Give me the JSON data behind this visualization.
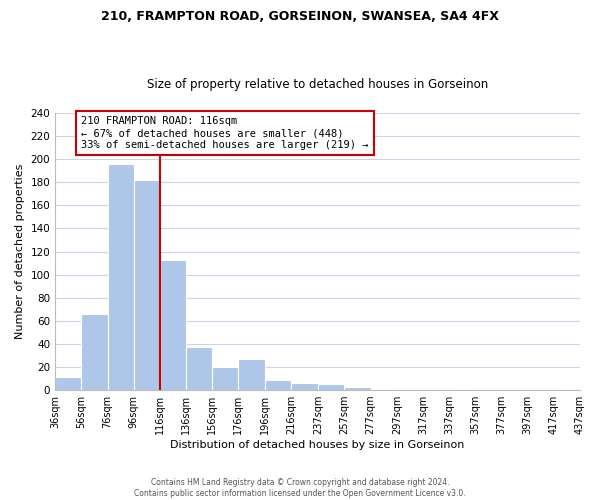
{
  "title_line1": "210, FRAMPTON ROAD, GORSEINON, SWANSEA, SA4 4FX",
  "title_line2": "Size of property relative to detached houses in Gorseinon",
  "xlabel": "Distribution of detached houses by size in Gorseinon",
  "ylabel": "Number of detached properties",
  "bin_edges": [
    36,
    56,
    76,
    96,
    116,
    136,
    156,
    176,
    196,
    216,
    237,
    257,
    277,
    297,
    317,
    337,
    357,
    377,
    397,
    417,
    437
  ],
  "bin_counts": [
    11,
    66,
    196,
    182,
    113,
    37,
    20,
    27,
    9,
    6,
    5,
    3,
    1,
    0,
    0,
    1,
    0,
    0,
    0,
    1
  ],
  "bar_color": "#aec6e8",
  "property_size": 116,
  "red_line_color": "#cc0000",
  "annotation_line1": "210 FRAMPTON ROAD: 116sqm",
  "annotation_line2": "← 67% of detached houses are smaller (448)",
  "annotation_line3": "33% of semi-detached houses are larger (219) →",
  "annotation_box_color": "#ffffff",
  "annotation_box_edge": "#cc0000",
  "ylim": [
    0,
    240
  ],
  "yticks": [
    0,
    20,
    40,
    60,
    80,
    100,
    120,
    140,
    160,
    180,
    200,
    220,
    240
  ],
  "tick_labels": [
    "36sqm",
    "56sqm",
    "76sqm",
    "96sqm",
    "116sqm",
    "136sqm",
    "156sqm",
    "176sqm",
    "196sqm",
    "216sqm",
    "237sqm",
    "257sqm",
    "277sqm",
    "297sqm",
    "317sqm",
    "337sqm",
    "357sqm",
    "377sqm",
    "397sqm",
    "417sqm",
    "437sqm"
  ],
  "footer_line1": "Contains HM Land Registry data © Crown copyright and database right 2024.",
  "footer_line2": "Contains public sector information licensed under the Open Government Licence v3.0.",
  "background_color": "#ffffff",
  "grid_color": "#c8d4e8"
}
